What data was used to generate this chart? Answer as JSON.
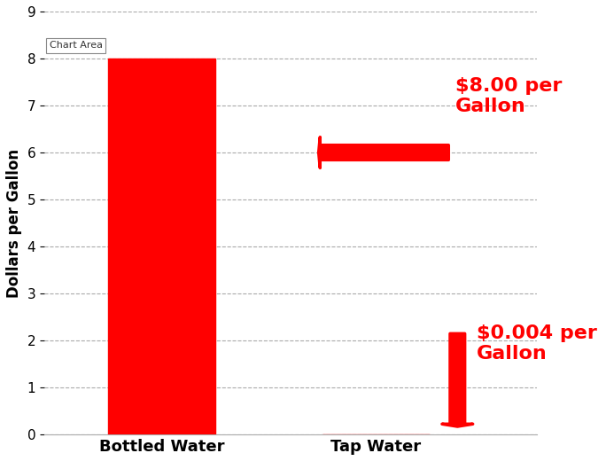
{
  "categories": [
    "Bottled Water",
    "Tap Water"
  ],
  "values": [
    8.0,
    0.004
  ],
  "bar_color": "#FF0000",
  "bar_width": 0.5,
  "ylim": [
    0,
    9
  ],
  "yticks": [
    0,
    1,
    2,
    3,
    4,
    5,
    6,
    7,
    8,
    9
  ],
  "ylabel": "Dollars per Gallon",
  "ylabel_fontsize": 12,
  "tick_fontsize": 11,
  "xlabel_fontsize": 13,
  "background_color": "#FFFFFF",
  "grid_color": "#AAAAAA",
  "annotation1_text": "$8.00 per\nGallon",
  "annotation2_text": "$0.004 per\nGallon",
  "annotation_color": "#FF0000",
  "annotation_fontsize": 16,
  "chart_area_label": "Chart Area"
}
